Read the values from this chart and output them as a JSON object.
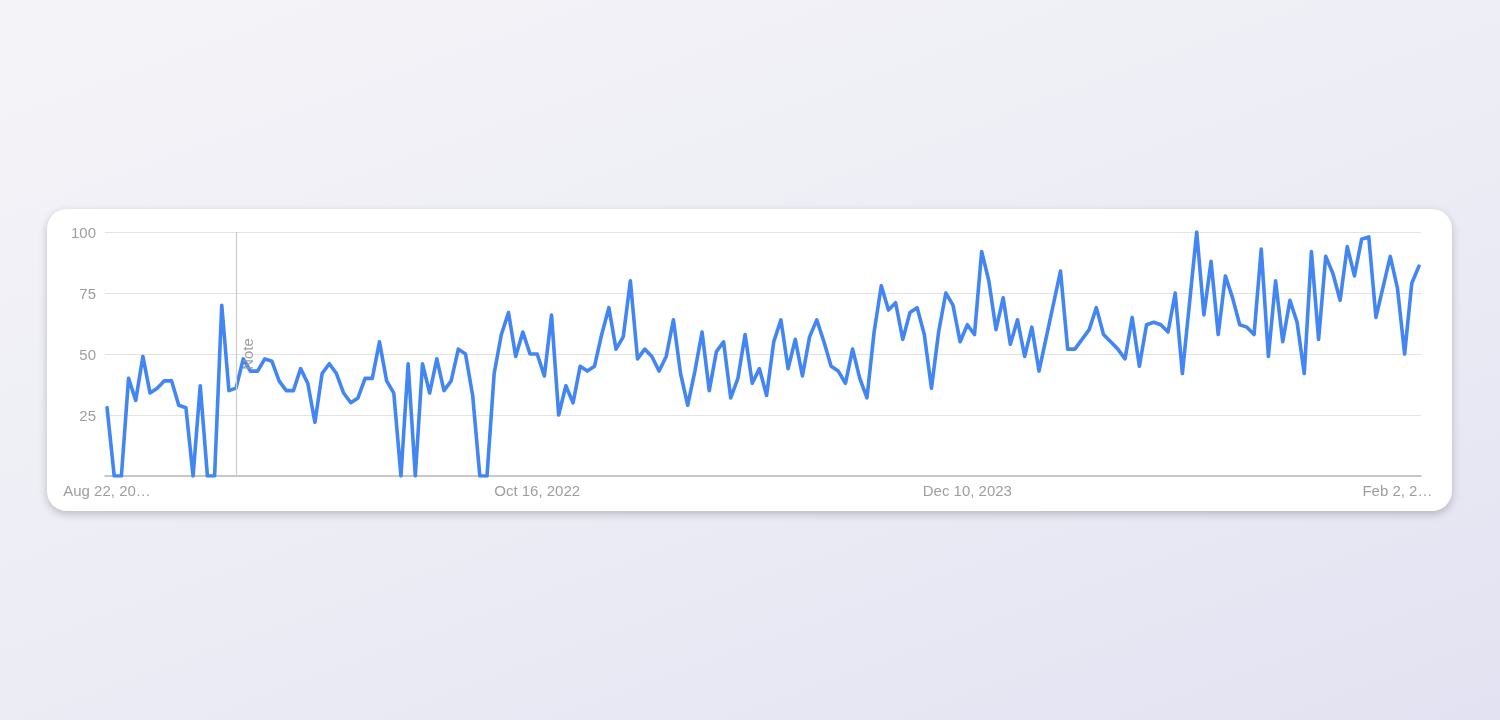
{
  "chart_data": {
    "type": "line",
    "x": [
      "2021-08-22",
      "2021-08-29",
      "2021-09-05",
      "2021-09-12",
      "2021-09-19",
      "2021-09-26",
      "2021-10-03",
      "2021-10-10",
      "2021-10-17",
      "2021-10-24",
      "2021-10-31",
      "2021-11-07",
      "2021-11-14",
      "2021-11-21",
      "2021-11-28",
      "2021-12-05",
      "2021-12-12",
      "2021-12-19",
      "2021-12-26",
      "2022-01-02",
      "2022-01-09",
      "2022-01-16",
      "2022-01-23",
      "2022-01-30",
      "2022-02-06",
      "2022-02-13",
      "2022-02-20",
      "2022-02-27",
      "2022-03-06",
      "2022-03-13",
      "2022-03-20",
      "2022-03-27",
      "2022-04-03",
      "2022-04-10",
      "2022-04-17",
      "2022-04-24",
      "2022-05-01",
      "2022-05-08",
      "2022-05-15",
      "2022-05-22",
      "2022-05-29",
      "2022-06-05",
      "2022-06-12",
      "2022-06-19",
      "2022-06-26",
      "2022-07-03",
      "2022-07-10",
      "2022-07-17",
      "2022-07-24",
      "2022-07-31",
      "2022-08-07",
      "2022-08-14",
      "2022-08-21",
      "2022-08-28",
      "2022-09-04",
      "2022-09-11",
      "2022-09-18",
      "2022-09-25",
      "2022-10-02",
      "2022-10-09",
      "2022-10-16",
      "2022-10-23",
      "2022-10-30",
      "2022-11-06",
      "2022-11-13",
      "2022-11-20",
      "2022-11-27",
      "2022-12-04",
      "2022-12-11",
      "2022-12-18",
      "2022-12-25",
      "2023-01-01",
      "2023-01-08",
      "2023-01-15",
      "2023-01-22",
      "2023-01-29",
      "2023-02-05",
      "2023-02-12",
      "2023-02-19",
      "2023-02-26",
      "2023-03-05",
      "2023-03-12",
      "2023-03-19",
      "2023-03-26",
      "2023-04-02",
      "2023-04-09",
      "2023-04-16",
      "2023-04-23",
      "2023-04-30",
      "2023-05-07",
      "2023-05-14",
      "2023-05-21",
      "2023-05-28",
      "2023-06-04",
      "2023-06-11",
      "2023-06-18",
      "2023-06-25",
      "2023-07-02",
      "2023-07-09",
      "2023-07-16",
      "2023-07-23",
      "2023-07-30",
      "2023-08-06",
      "2023-08-13",
      "2023-08-20",
      "2023-08-27",
      "2023-09-03",
      "2023-09-10",
      "2023-09-17",
      "2023-09-24",
      "2023-10-01",
      "2023-10-08",
      "2023-10-15",
      "2023-10-22",
      "2023-10-29",
      "2023-11-05",
      "2023-11-12",
      "2023-11-19",
      "2023-11-26",
      "2023-12-03",
      "2023-12-10",
      "2023-12-17",
      "2023-12-24",
      "2023-12-31",
      "2024-01-07",
      "2024-01-14",
      "2024-01-21",
      "2024-01-28",
      "2024-02-04",
      "2024-02-11",
      "2024-02-18",
      "2024-03-10",
      "2024-03-17",
      "2024-03-24",
      "2024-03-31",
      "2024-04-07",
      "2024-04-14",
      "2024-04-21",
      "2024-04-28",
      "2024-05-05",
      "2024-05-12",
      "2024-05-19",
      "2024-05-26",
      "2024-06-02",
      "2024-06-09",
      "2024-06-16",
      "2024-06-23",
      "2024-06-30",
      "2024-07-07",
      "2024-07-21",
      "2024-07-28",
      "2024-08-04",
      "2024-08-11",
      "2024-08-18",
      "2024-08-25",
      "2024-09-01",
      "2024-09-08",
      "2024-09-15",
      "2024-09-22",
      "2024-09-29",
      "2024-10-06",
      "2024-10-13",
      "2024-10-20",
      "2024-10-27",
      "2024-11-03",
      "2024-11-10",
      "2024-11-17",
      "2024-11-24",
      "2024-12-01",
      "2024-12-08",
      "2024-12-15",
      "2024-12-22",
      "2024-12-29",
      "2025-01-05",
      "2025-01-12",
      "2025-01-26",
      "2025-02-02",
      "2025-02-09",
      "2025-02-16",
      "2025-02-23"
    ],
    "series": [
      {
        "color": "#4285f4",
        "values": [
          28,
          0,
          0,
          40,
          31,
          49,
          34,
          36,
          39,
          39,
          29,
          28,
          0,
          37,
          0,
          0,
          70,
          35,
          36,
          48,
          43,
          43,
          48,
          47,
          39,
          35,
          35,
          44,
          38,
          22,
          42,
          46,
          42,
          34,
          30,
          32,
          40,
          40,
          55,
          39,
          34,
          0,
          46,
          0,
          46,
          34,
          48,
          35,
          39,
          52,
          50,
          33,
          0,
          0,
          42,
          58,
          67,
          49,
          59,
          50,
          50,
          41,
          66,
          25,
          37,
          30,
          45,
          43,
          45,
          58,
          69,
          52,
          57,
          80,
          48,
          52,
          49,
          43,
          49,
          64,
          42,
          29,
          43,
          59,
          35,
          51,
          55,
          32,
          40,
          58,
          38,
          44,
          33,
          55,
          64,
          44,
          56,
          41,
          57,
          64,
          55,
          45,
          43,
          38,
          52,
          40,
          32,
          59,
          78,
          68,
          71,
          56,
          67,
          69,
          58,
          36,
          59,
          75,
          70,
          55,
          62,
          58,
          92,
          80,
          60,
          73,
          54,
          64,
          49,
          61,
          43,
          84,
          52,
          52,
          56,
          60,
          69,
          58,
          55,
          52,
          48,
          65,
          45,
          62,
          63,
          62,
          59,
          75,
          42,
          100,
          66,
          88,
          58,
          82,
          73,
          62,
          61,
          58,
          93,
          49,
          80,
          55,
          72,
          63,
          42,
          92,
          56,
          90,
          83,
          72,
          94,
          82,
          97,
          98,
          65,
          90,
          77,
          50,
          79,
          86
        ]
      }
    ],
    "xlim": [
      "2021-08-20",
      "2025-02-25"
    ],
    "xticks": [
      {
        "value": "2021-08-22",
        "label": "Aug 22, 20…"
      },
      {
        "value": "2022-10-16",
        "label": "Oct 16, 2022"
      },
      {
        "value": "2023-12-10",
        "label": "Dec 10, 2023"
      },
      {
        "value": "2025-02-02",
        "label": "Feb 2, 2…"
      }
    ],
    "ylim": [
      0,
      100
    ],
    "yticks": [
      25,
      50,
      75,
      100
    ],
    "ref_lines": [
      {
        "axis": "x",
        "value": "2021-12-26",
        "label": "Note",
        "color": "#cccccc"
      }
    ],
    "grid": "y",
    "marker": "none",
    "line_style": "solid"
  }
}
